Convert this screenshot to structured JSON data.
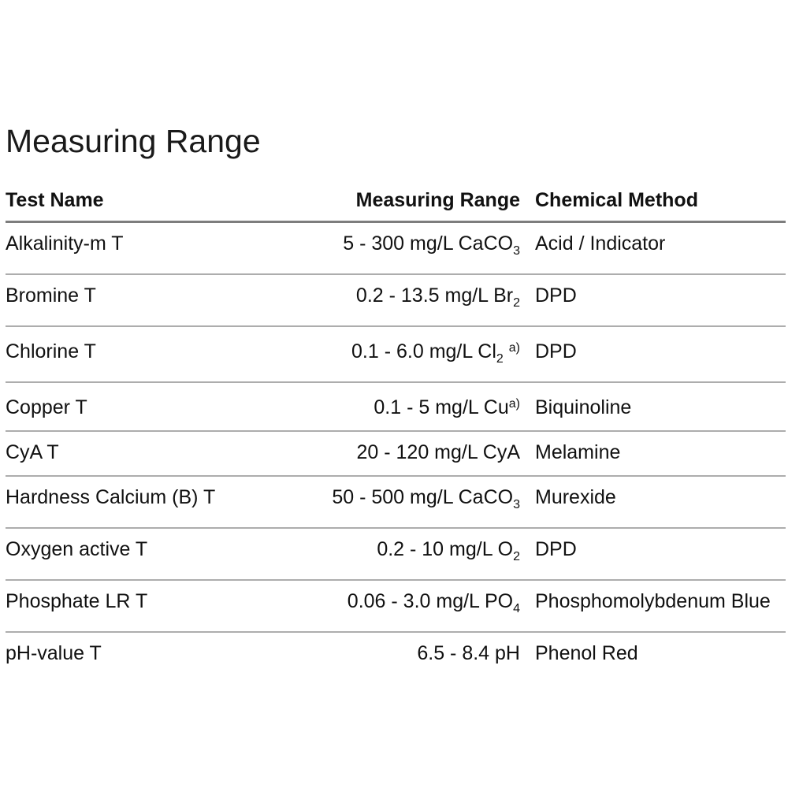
{
  "page": {
    "title": "Measuring Range"
  },
  "table": {
    "headers": [
      "Test Name",
      "Measuring Range",
      "Chemical Method"
    ],
    "rows": [
      {
        "test_name": "Alkalinity-m T",
        "range_parts": [
          {
            "t": "5 - 300 mg/L CaCO"
          },
          {
            "t": "3",
            "s": "sub"
          }
        ],
        "range_text": "5 - 300 mg/L CaCO3",
        "method": "Acid / Indicator"
      },
      {
        "test_name": "Bromine T",
        "range_parts": [
          {
            "t": "0.2 - 13.5 mg/L Br"
          },
          {
            "t": "2",
            "s": "sub"
          }
        ],
        "range_text": "0.2 - 13.5 mg/L Br2",
        "method": "DPD"
      },
      {
        "test_name": "Chlorine T",
        "range_parts": [
          {
            "t": "0.1 - 6.0 mg/L Cl"
          },
          {
            "t": "2",
            "s": "sub"
          },
          {
            "t": " "
          },
          {
            "t": "a)",
            "s": "sup"
          }
        ],
        "range_text": "0.1 - 6.0 mg/L Cl2 a)",
        "method": "DPD"
      },
      {
        "test_name": "Copper T",
        "range_parts": [
          {
            "t": "0.1 - 5 mg/L Cu"
          },
          {
            "t": "a)",
            "s": "sup"
          }
        ],
        "range_text": "0.1 - 5 mg/L Cua)",
        "method": "Biquinoline"
      },
      {
        "test_name": "CyA T",
        "range_parts": [
          {
            "t": "20 - 120 mg/L CyA"
          }
        ],
        "range_text": "20 - 120 mg/L CyA",
        "method": "Melamine"
      },
      {
        "test_name": "Hardness Calcium (B) T",
        "range_parts": [
          {
            "t": "50 - 500 mg/L CaCO"
          },
          {
            "t": "3",
            "s": "sub"
          }
        ],
        "range_text": "50 - 500 mg/L CaCO3",
        "method": "Murexide"
      },
      {
        "test_name": "Oxygen active T",
        "range_parts": [
          {
            "t": "0.2 - 10 mg/L O"
          },
          {
            "t": "2",
            "s": "sub"
          }
        ],
        "range_text": "0.2 - 10 mg/L O2",
        "method": "DPD"
      },
      {
        "test_name": "Phosphate LR T",
        "range_parts": [
          {
            "t": "0.06 - 3.0 mg/L PO"
          },
          {
            "t": "4",
            "s": "sub"
          }
        ],
        "range_text": "0.06 - 3.0 mg/L PO4",
        "method": "Phosphomolybdenum Blue"
      },
      {
        "test_name": "pH-value T",
        "range_parts": [
          {
            "t": "6.5 - 8.4 pH"
          }
        ],
        "range_text": "6.5 - 8.4 pH",
        "method": "Phenol Red"
      }
    ]
  },
  "colors": {
    "text": "#1a1a1a",
    "header_rule": "#7d7d7d",
    "row_rule": "#adadad",
    "background": "#ffffff"
  }
}
